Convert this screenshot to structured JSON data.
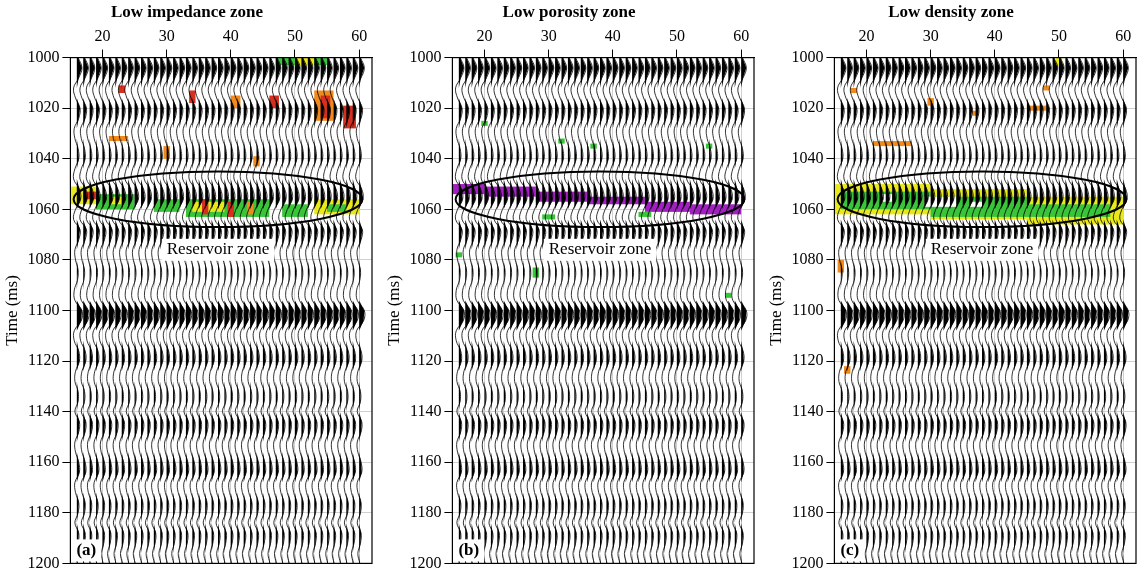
{
  "chart_data": [
    {
      "type": "wiggle",
      "title": "Low impedance zone",
      "panel_label": "(a)",
      "y_label": "Time (ms)",
      "xlim": [
        15,
        62
      ],
      "xticks": [
        20,
        30,
        40,
        50,
        60
      ],
      "ylim": [
        1000,
        1200
      ],
      "yticks": [
        1000,
        1020,
        1040,
        1060,
        1080,
        1100,
        1120,
        1140,
        1160,
        1180,
        1200
      ],
      "grid": true,
      "traces": [
        16,
        17,
        18,
        19,
        20,
        21,
        22,
        23,
        24,
        25,
        26,
        27,
        28,
        29,
        30,
        31,
        32,
        33,
        34,
        35,
        36,
        37,
        38,
        39,
        40,
        41,
        42,
        43,
        44,
        45,
        46,
        47,
        48,
        49,
        50,
        51,
        52,
        53,
        54,
        55,
        56,
        57,
        58,
        59,
        60
      ],
      "trace_times": [
        1000,
        1004,
        1008,
        1012,
        1016,
        1020,
        1024,
        1028,
        1032,
        1036,
        1040,
        1044,
        1048,
        1052,
        1056,
        1060,
        1064,
        1068,
        1072,
        1076,
        1080,
        1084,
        1088,
        1092,
        1096,
        1100,
        1104,
        1108,
        1112,
        1116,
        1120,
        1124,
        1128,
        1132,
        1136,
        1140,
        1144,
        1148,
        1152,
        1156,
        1160,
        1164,
        1168,
        1172,
        1176,
        1180,
        1184,
        1188,
        1192,
        1196,
        1200
      ],
      "trace_amplitudes": [
        0.2,
        0.8,
        0.3,
        -0.5,
        -0.2,
        0.5,
        0.3,
        -0.4,
        -0.3,
        0.2,
        0.3,
        -0.3,
        -0.5,
        0.4,
        0.6,
        -0.2,
        -0.5,
        0.5,
        0.3,
        -0.3,
        -0.2,
        0.2,
        0.1,
        -0.4,
        -0.3,
        0.8,
        0.7,
        -0.4,
        -0.4,
        0.3,
        0.4,
        -0.2,
        -0.3,
        0.2,
        0.2,
        -0.3,
        0.4,
        0.3,
        -0.3,
        -0.2,
        0.3,
        0.4,
        -0.3,
        -0.2,
        0.3,
        0.2,
        -0.3,
        0.3,
        0.2,
        -0.2,
        0.1
      ],
      "zones": [
        {
          "x": [
            47,
            55
          ],
          "t": [
            1000,
            1003
          ],
          "color": "#39c43a"
        },
        {
          "x": [
            50,
            53
          ],
          "t": [
            1000,
            1003
          ],
          "color": "#e8e81a"
        },
        {
          "x": [
            53,
            56
          ],
          "t": [
            1013,
            1025
          ],
          "color": "#f08a1c"
        },
        {
          "x": [
            54,
            55.5
          ],
          "t": [
            1015,
            1024
          ],
          "color": "#d62f1f"
        },
        {
          "x": [
            57.5,
            59.5
          ],
          "t": [
            1019,
            1028
          ],
          "color": "#d62f1f"
        },
        {
          "x": [
            22.5,
            23.5
          ],
          "t": [
            1011,
            1014
          ],
          "color": "#d62f1f"
        },
        {
          "x": [
            33.5,
            34.5
          ],
          "t": [
            1013,
            1018
          ],
          "color": "#d62f1f"
        },
        {
          "x": [
            40,
            41.5
          ],
          "t": [
            1015,
            1020
          ],
          "color": "#f08a1c"
        },
        {
          "x": [
            46,
            47.5
          ],
          "t": [
            1015,
            1020
          ],
          "color": "#d62f1f"
        },
        {
          "x": [
            29.5,
            30.5
          ],
          "t": [
            1035,
            1040
          ],
          "color": "#f08a1c"
        },
        {
          "x": [
            43.5,
            44.5
          ],
          "t": [
            1039,
            1043
          ],
          "color": "#f08a1c"
        },
        {
          "x": [
            21,
            24
          ],
          "t": [
            1031,
            1033
          ],
          "color": "#f08a1c"
        },
        {
          "x": [
            15,
            19
          ],
          "t": [
            1051,
            1058
          ],
          "color": "#e8e81a"
        },
        {
          "x": [
            17,
            19
          ],
          "t": [
            1053,
            1056
          ],
          "color": "#d62f1f"
        },
        {
          "x": [
            19,
            25
          ],
          "t": [
            1054,
            1060
          ],
          "color": "#39c43a"
        },
        {
          "x": [
            21,
            23
          ],
          "t": [
            1055,
            1058
          ],
          "color": "#e8e81a"
        },
        {
          "x": [
            28,
            32
          ],
          "t": [
            1056,
            1061
          ],
          "color": "#39c43a"
        },
        {
          "x": [
            33,
            46
          ],
          "t": [
            1056,
            1063
          ],
          "color": "#39c43a"
        },
        {
          "x": [
            34,
            39
          ],
          "t": [
            1057,
            1061
          ],
          "color": "#e8e81a"
        },
        {
          "x": [
            35.5,
            36.5
          ],
          "t": [
            1056,
            1062
          ],
          "color": "#d62f1f"
        },
        {
          "x": [
            39.5,
            40.5
          ],
          "t": [
            1057,
            1063
          ],
          "color": "#d62f1f"
        },
        {
          "x": [
            42.5,
            43.5
          ],
          "t": [
            1057,
            1062
          ],
          "color": "#f08a1c"
        },
        {
          "x": [
            48,
            52
          ],
          "t": [
            1058,
            1063
          ],
          "color": "#39c43a"
        },
        {
          "x": [
            53,
            60
          ],
          "t": [
            1056,
            1062
          ],
          "color": "#e8e81a"
        },
        {
          "x": [
            55,
            58
          ],
          "t": [
            1058,
            1061
          ],
          "color": "#39c43a"
        }
      ],
      "ellipse": {
        "center": [
          38,
          1056
        ],
        "x_radius": 22.5,
        "t_radius": 11
      },
      "annotation": {
        "text": "Reservoir zone",
        "x": 38,
        "t": 1076
      }
    },
    {
      "type": "wiggle",
      "title": "Low porosity zone",
      "panel_label": "(b)",
      "y_label": "Time (ms)",
      "xlim": [
        15,
        62
      ],
      "xticks": [
        20,
        30,
        40,
        50,
        60
      ],
      "ylim": [
        1000,
        1200
      ],
      "yticks": [
        1000,
        1020,
        1040,
        1060,
        1080,
        1100,
        1120,
        1140,
        1160,
        1180,
        1200
      ],
      "grid": true,
      "traces": [
        16,
        17,
        18,
        19,
        20,
        21,
        22,
        23,
        24,
        25,
        26,
        27,
        28,
        29,
        30,
        31,
        32,
        33,
        34,
        35,
        36,
        37,
        38,
        39,
        40,
        41,
        42,
        43,
        44,
        45,
        46,
        47,
        48,
        49,
        50,
        51,
        52,
        53,
        54,
        55,
        56,
        57,
        58,
        59,
        60
      ],
      "trace_times": [
        1000,
        1004,
        1008,
        1012,
        1016,
        1020,
        1024,
        1028,
        1032,
        1036,
        1040,
        1044,
        1048,
        1052,
        1056,
        1060,
        1064,
        1068,
        1072,
        1076,
        1080,
        1084,
        1088,
        1092,
        1096,
        1100,
        1104,
        1108,
        1112,
        1116,
        1120,
        1124,
        1128,
        1132,
        1136,
        1140,
        1144,
        1148,
        1152,
        1156,
        1160,
        1164,
        1168,
        1172,
        1176,
        1180,
        1184,
        1188,
        1192,
        1196,
        1200
      ],
      "trace_amplitudes": [
        0.2,
        0.8,
        0.3,
        -0.5,
        -0.2,
        0.5,
        0.3,
        -0.4,
        -0.3,
        0.2,
        0.3,
        -0.3,
        -0.5,
        0.4,
        0.6,
        -0.2,
        -0.5,
        0.5,
        0.3,
        -0.3,
        -0.2,
        0.2,
        0.1,
        -0.4,
        -0.3,
        0.8,
        0.7,
        -0.4,
        -0.4,
        0.3,
        0.4,
        -0.2,
        -0.3,
        0.2,
        0.2,
        -0.3,
        0.4,
        0.3,
        -0.3,
        -0.2,
        0.3,
        0.4,
        -0.3,
        -0.2,
        0.3,
        0.2,
        -0.3,
        0.3,
        0.2,
        -0.2,
        0.1
      ],
      "zones": [
        {
          "x": [
            15,
            20
          ],
          "t": [
            1050,
            1054
          ],
          "color": "#a020c0"
        },
        {
          "x": [
            20,
            28
          ],
          "t": [
            1051,
            1055
          ],
          "color": "#a020c0"
        },
        {
          "x": [
            28,
            36
          ],
          "t": [
            1053,
            1057
          ],
          "color": "#a020c0"
        },
        {
          "x": [
            36,
            45
          ],
          "t": [
            1055,
            1058
          ],
          "color": "#a020c0"
        },
        {
          "x": [
            45,
            52
          ],
          "t": [
            1057,
            1061
          ],
          "color": "#a020c0"
        },
        {
          "x": [
            52,
            60
          ],
          "t": [
            1058,
            1062
          ],
          "color": "#a020c0"
        },
        {
          "x": [
            19.5,
            20.5
          ],
          "t": [
            1025,
            1027
          ],
          "color": "#39c43a"
        },
        {
          "x": [
            31.5,
            32.5
          ],
          "t": [
            1032,
            1034
          ],
          "color": "#39c43a"
        },
        {
          "x": [
            36.5,
            37.5
          ],
          "t": [
            1034,
            1036
          ],
          "color": "#39c43a"
        },
        {
          "x": [
            54.5,
            55.5
          ],
          "t": [
            1034,
            1036
          ],
          "color": "#39c43a"
        },
        {
          "x": [
            29,
            31
          ],
          "t": [
            1062,
            1064
          ],
          "color": "#39c43a"
        },
        {
          "x": [
            44,
            46
          ],
          "t": [
            1061,
            1063
          ],
          "color": "#39c43a"
        },
        {
          "x": [
            27.5,
            28.5
          ],
          "t": [
            1083,
            1087
          ],
          "color": "#39c43a"
        },
        {
          "x": [
            15.5,
            16.5
          ],
          "t": [
            1077,
            1079
          ],
          "color": "#39c43a"
        },
        {
          "x": [
            57.5,
            58.5
          ],
          "t": [
            1093,
            1095
          ],
          "color": "#39c43a"
        }
      ],
      "ellipse": {
        "center": [
          38,
          1056
        ],
        "x_radius": 22.5,
        "t_radius": 11
      },
      "annotation": {
        "text": "Reservoir zone",
        "x": 38,
        "t": 1076
      }
    },
    {
      "type": "wiggle",
      "title": "Low density zone",
      "panel_label": "(c)",
      "y_label": "Time (ms)",
      "xlim": [
        15,
        62
      ],
      "xticks": [
        20,
        30,
        40,
        50,
        60
      ],
      "ylim": [
        1000,
        1200
      ],
      "yticks": [
        1000,
        1020,
        1040,
        1060,
        1080,
        1100,
        1120,
        1140,
        1160,
        1180,
        1200
      ],
      "grid": true,
      "traces": [
        16,
        17,
        18,
        19,
        20,
        21,
        22,
        23,
        24,
        25,
        26,
        27,
        28,
        29,
        30,
        31,
        32,
        33,
        34,
        35,
        36,
        37,
        38,
        39,
        40,
        41,
        42,
        43,
        44,
        45,
        46,
        47,
        48,
        49,
        50,
        51,
        52,
        53,
        54,
        55,
        56,
        57,
        58,
        59,
        60
      ],
      "trace_times": [
        1000,
        1004,
        1008,
        1012,
        1016,
        1020,
        1024,
        1028,
        1032,
        1036,
        1040,
        1044,
        1048,
        1052,
        1056,
        1060,
        1064,
        1068,
        1072,
        1076,
        1080,
        1084,
        1088,
        1092,
        1096,
        1100,
        1104,
        1108,
        1112,
        1116,
        1120,
        1124,
        1128,
        1132,
        1136,
        1140,
        1144,
        1148,
        1152,
        1156,
        1160,
        1164,
        1168,
        1172,
        1176,
        1180,
        1184,
        1188,
        1192,
        1196,
        1200
      ],
      "trace_amplitudes": [
        0.2,
        0.8,
        0.3,
        -0.5,
        -0.2,
        0.5,
        0.3,
        -0.4,
        -0.3,
        0.2,
        0.3,
        -0.3,
        -0.5,
        0.4,
        0.6,
        -0.2,
        -0.5,
        0.5,
        0.3,
        -0.3,
        -0.2,
        0.2,
        0.1,
        -0.4,
        -0.3,
        0.8,
        0.7,
        -0.4,
        -0.4,
        0.3,
        0.4,
        -0.2,
        -0.3,
        0.2,
        0.2,
        -0.3,
        0.4,
        0.3,
        -0.3,
        -0.2,
        0.3,
        0.4,
        -0.3,
        -0.2,
        0.3,
        0.2,
        -0.3,
        0.3,
        0.2,
        -0.2,
        0.1
      ],
      "zones": [
        {
          "x": [
            15,
            30
          ],
          "t": [
            1050,
            1062
          ],
          "color": "#e8e81a"
        },
        {
          "x": [
            30,
            45
          ],
          "t": [
            1052,
            1064
          ],
          "color": "#e8e81a"
        },
        {
          "x": [
            45,
            60
          ],
          "t": [
            1055,
            1066
          ],
          "color": "#e8e81a"
        },
        {
          "x": [
            16,
            30
          ],
          "t": [
            1053,
            1060
          ],
          "color": "#39c43a"
        },
        {
          "x": [
            30,
            45
          ],
          "t": [
            1055,
            1063
          ],
          "color": "#39c43a"
        },
        {
          "x": [
            45,
            58
          ],
          "t": [
            1058,
            1063
          ],
          "color": "#39c43a"
        },
        {
          "x": [
            22,
            24
          ],
          "t": [
            1054,
            1057
          ],
          "color": "#ffffff"
        },
        {
          "x": [
            29,
            34
          ],
          "t": [
            1055,
            1059
          ],
          "color": "#ffffff"
        },
        {
          "x": [
            36,
            38
          ],
          "t": [
            1057,
            1059
          ],
          "color": "#ffffff"
        },
        {
          "x": [
            21,
            27
          ],
          "t": [
            1033,
            1035
          ],
          "color": "#f08a1c"
        },
        {
          "x": [
            17.5,
            18.5
          ],
          "t": [
            1012,
            1014
          ],
          "color": "#f08a1c"
        },
        {
          "x": [
            29.5,
            30.5
          ],
          "t": [
            1016,
            1019
          ],
          "color": "#f08a1c"
        },
        {
          "x": [
            36.5,
            37.5
          ],
          "t": [
            1021,
            1023
          ],
          "color": "#f08a1c"
        },
        {
          "x": [
            45,
            48
          ],
          "t": [
            1019,
            1021
          ],
          "color": "#f08a1c"
        },
        {
          "x": [
            49.5,
            50.5
          ],
          "t": [
            1000,
            1003
          ],
          "color": "#e8e81a"
        },
        {
          "x": [
            47.5,
            48.5
          ],
          "t": [
            1011,
            1013
          ],
          "color": "#f08a1c"
        },
        {
          "x": [
            15.5,
            16.5
          ],
          "t": [
            1080,
            1085
          ],
          "color": "#f08a1c"
        },
        {
          "x": [
            16.5,
            17.5
          ],
          "t": [
            1122,
            1125
          ],
          "color": "#f08a1c"
        }
      ],
      "ellipse": {
        "center": [
          38,
          1056
        ],
        "x_radius": 22.5,
        "t_radius": 11
      },
      "annotation": {
        "text": "Reservoir zone",
        "x": 38,
        "t": 1076
      }
    }
  ]
}
